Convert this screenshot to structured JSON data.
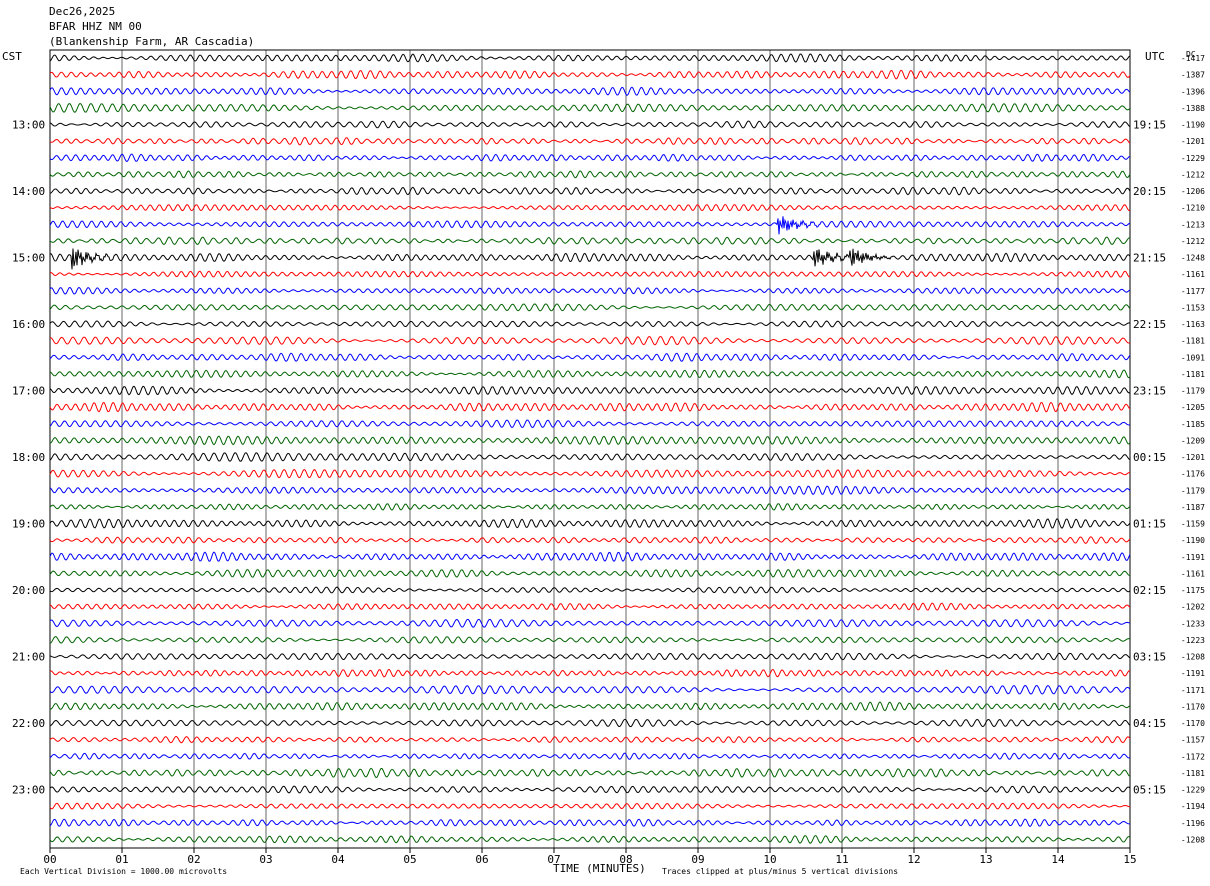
{
  "header": {
    "date": "Dec26,2025",
    "station": "BFAR HHZ NM 00",
    "site": "(Blankenship Farm, AR Cascadia)"
  },
  "left_timezone": "CST",
  "right_timezone": "UTC",
  "dc_header": "DC",
  "footer": {
    "scale_note": "Each Vertical Division = 1000.00 microvolts",
    "clip_note": "Traces clipped at plus/minus 5 vertical divisions"
  },
  "chart_data": {
    "type": "line",
    "title": "",
    "xlabel": "TIME (MINUTES)",
    "ylabel": "",
    "x_ticks": [
      "00",
      "01",
      "02",
      "03",
      "04",
      "05",
      "06",
      "07",
      "08",
      "09",
      "10",
      "11",
      "12",
      "13",
      "14",
      "15"
    ],
    "xlim": [
      0,
      15
    ],
    "grid_vertical": true,
    "trace_colors": [
      "#000000",
      "#ff0000",
      "#0000ff",
      "#006400"
    ],
    "left_hour_labels": [
      "13:00",
      "14:00",
      "15:00",
      "16:00",
      "17:00",
      "18:00",
      "19:00",
      "20:00",
      "21:00",
      "22:00",
      "23:00"
    ],
    "right_hour_labels": [
      "19:15",
      "20:15",
      "21:15",
      "22:15",
      "23:15",
      "00:15",
      "01:15",
      "02:15",
      "03:15",
      "04:15",
      "05:15"
    ],
    "dc_offsets": [
      "-1417",
      "-1387",
      "-1396",
      "-1388",
      "-1190",
      "-1201",
      "-1229",
      "-1212",
      "-1206",
      "-1210",
      "-1213",
      "-1212",
      "-1248",
      "-1161",
      "-1177",
      "-1153",
      "-1163",
      "-1181",
      "-1091",
      "-1181",
      "-1179",
      "-1205",
      "-1185",
      "-1209",
      "-1201",
      "-1176",
      "-1179",
      "-1187",
      "-1159",
      "-1190",
      "-1191",
      "-1161",
      "-1175",
      "-1202",
      "-1233",
      "-1223",
      "-1208",
      "-1191",
      "-1171",
      "-1170",
      "-1170",
      "-1157",
      "-1172",
      "-1181",
      "-1229",
      "-1194",
      "-1196",
      "-1208"
    ],
    "events": [
      {
        "trace": 10,
        "minute": 10.1,
        "description": "local event burst"
      },
      {
        "trace": 12,
        "minute": 0.3,
        "description": "noise burst"
      },
      {
        "trace": 12,
        "minute": 10.6,
        "description": "event"
      },
      {
        "trace": 12,
        "minute": 11.1,
        "description": "event clipped"
      }
    ]
  }
}
